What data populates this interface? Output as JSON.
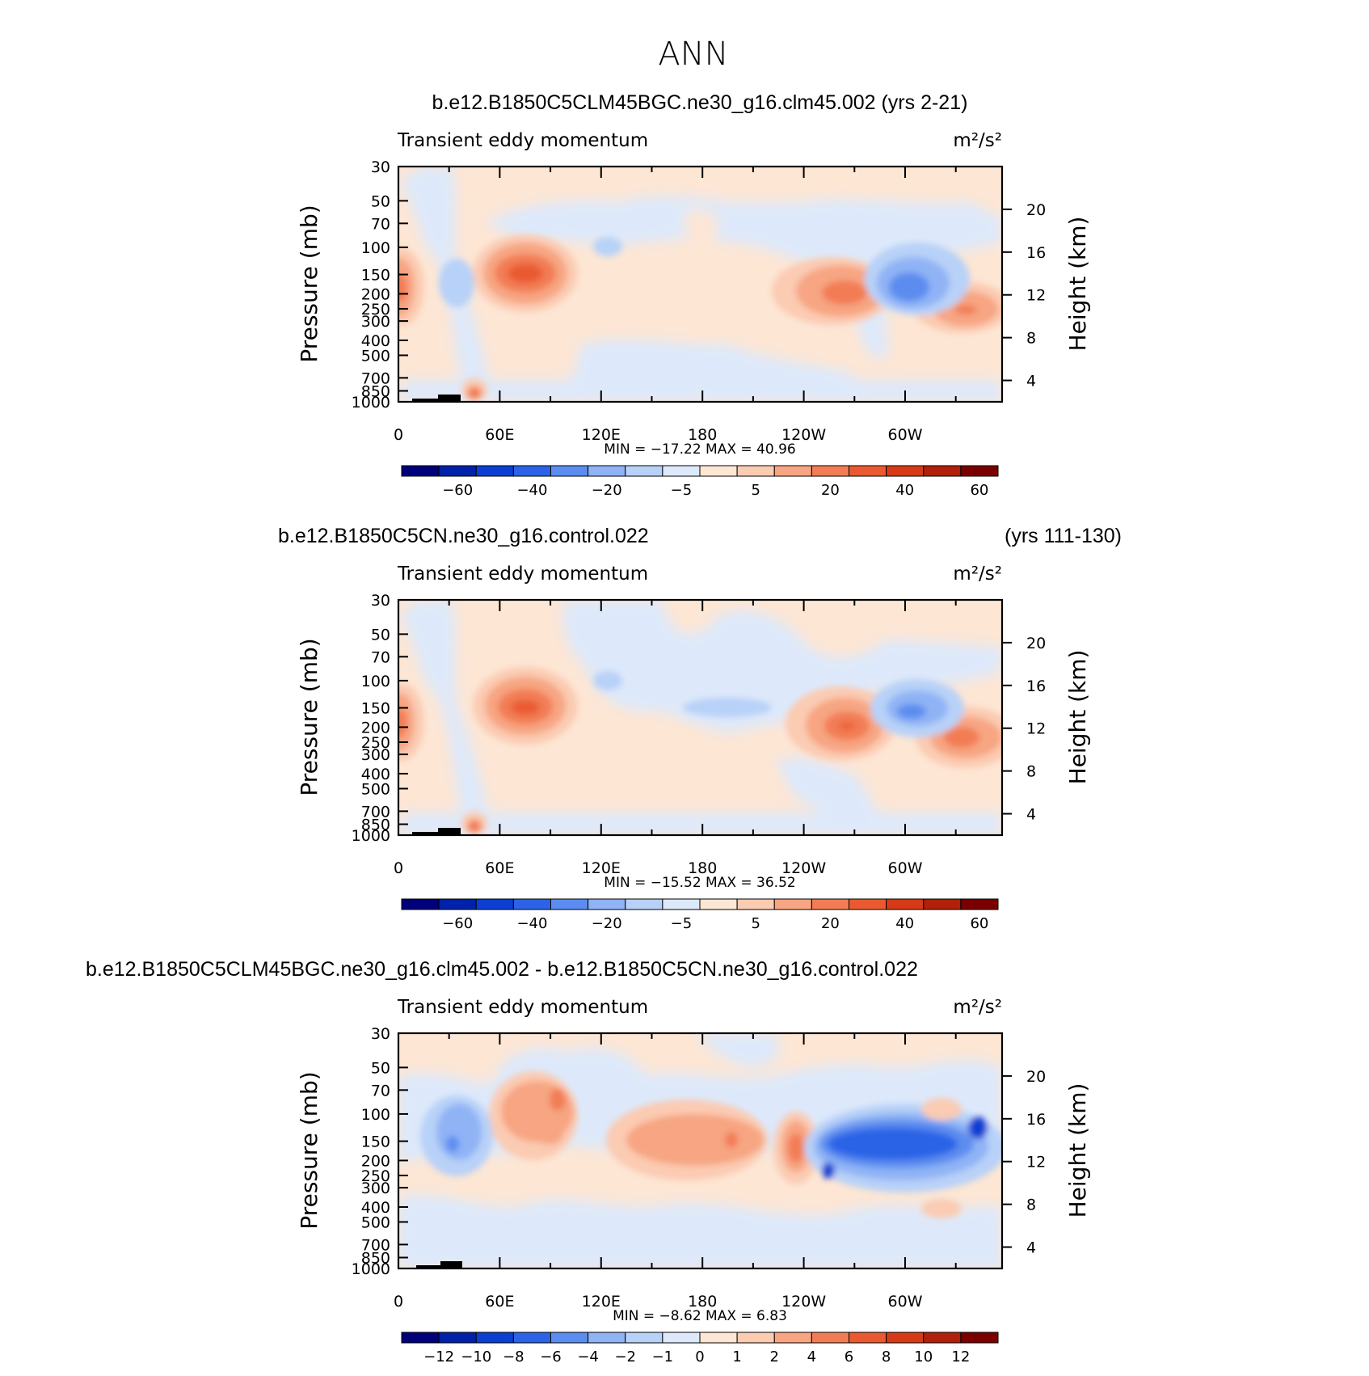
{
  "page": {
    "title": "ANN"
  },
  "panels": [
    {
      "case_title": "b.e12.B1850C5CLM45BGC.ne30_g16.clm45.002 (yrs 2-21)",
      "case_title_right": "",
      "left_label": "Transient  eddy  momentum",
      "right_label": "m²/s²",
      "left_axis_label": "Pressure  (mb)",
      "right_axis_label": "Height  (km)",
      "pressure_ticks": [
        "30",
        "50",
        "70",
        "100",
        "150",
        "200",
        "250",
        "300",
        "400",
        "500",
        "700",
        "850",
        "1000"
      ],
      "height_ticks": [
        "20",
        "16",
        "12",
        "8",
        "4"
      ],
      "lon_ticks": [
        "0",
        "60E",
        "120E",
        "180",
        "120W",
        "60W"
      ],
      "min_max": "MIN =  −17.22   MAX =    40.96",
      "colorbar_ticks": [
        "−60",
        "−40",
        "−20",
        "−5",
        "5",
        "20",
        "40",
        "60"
      ]
    },
    {
      "case_title": "b.e12.B1850C5CN.ne30_g16.control.022",
      "case_title_right": "(yrs 111-130)",
      "left_label": "Transient  eddy  momentum",
      "right_label": "m²/s²",
      "left_axis_label": "Pressure  (mb)",
      "right_axis_label": "Height  (km)",
      "pressure_ticks": [
        "30",
        "50",
        "70",
        "100",
        "150",
        "200",
        "250",
        "300",
        "400",
        "500",
        "700",
        "850",
        "1000"
      ],
      "height_ticks": [
        "20",
        "16",
        "12",
        "8",
        "4"
      ],
      "lon_ticks": [
        "0",
        "60E",
        "120E",
        "180",
        "120W",
        "60W"
      ],
      "min_max": "MIN =  −15.52   MAX =    36.52",
      "colorbar_ticks": [
        "−60",
        "−40",
        "−20",
        "−5",
        "5",
        "20",
        "40",
        "60"
      ]
    },
    {
      "case_title": "b.e12.B1850C5CLM45BGC.ne30_g16.clm45.002 - b.e12.B1850C5CN.ne30_g16.control.022",
      "case_title_right": "",
      "left_label": "Transient  eddy  momentum",
      "right_label": "m²/s²",
      "left_axis_label": "Pressure  (mb)",
      "right_axis_label": "Height  (km)",
      "pressure_ticks": [
        "30",
        "50",
        "70",
        "100",
        "150",
        "200",
        "250",
        "300",
        "400",
        "500",
        "700",
        "850",
        "1000"
      ],
      "height_ticks": [
        "20",
        "16",
        "12",
        "8",
        "4"
      ],
      "lon_ticks": [
        "0",
        "60E",
        "120E",
        "180",
        "120W",
        "60W"
      ],
      "min_max": "MIN =    −8.62   MAX =     6.83",
      "colorbar_ticks": [
        "−12",
        "−10",
        "−8",
        "−6",
        "−4",
        "−2",
        "−1",
        "0",
        "1",
        "2",
        "4",
        "6",
        "8",
        "10",
        "12"
      ]
    }
  ],
  "colors": {
    "scale": [
      "#00007a",
      "#0022a8",
      "#0a3fd2",
      "#2c63e6",
      "#5b8cf0",
      "#8fb3f5",
      "#b8d1f8",
      "#dde9fb",
      "#fde6d4",
      "#fbcbb2",
      "#f7a582",
      "#f27d55",
      "#ea5a30",
      "#d63a16",
      "#b0200a",
      "#7a0000"
    ]
  },
  "chart_data": [
    {
      "type": "heatmap",
      "title": "b.e12.B1850C5CLM45BGC.ne30_g16.clm45.002 (yrs 2-21)",
      "xlabel": "",
      "ylabel": "Pressure (mb)",
      "y2label": "Height (km)",
      "x_ticks": [
        "0",
        "60E",
        "120E",
        "180",
        "120W",
        "60W"
      ],
      "y_ticks_mb": [
        30,
        50,
        70,
        100,
        150,
        200,
        250,
        300,
        400,
        500,
        700,
        850,
        1000
      ],
      "y2_ticks_km": [
        20,
        16,
        12,
        8,
        4
      ],
      "levels": [
        -60,
        -40,
        -20,
        -5,
        5,
        20,
        40,
        60
      ],
      "min": -17.22,
      "max": 40.96,
      "features": [
        {
          "lon": 2,
          "p_mb": 200,
          "value": 25
        },
        {
          "lon": 38,
          "p_mb": 180,
          "value": -8
        },
        {
          "lon": 77,
          "p_mb": 150,
          "value": 38
        },
        {
          "lon": 120,
          "p_mb": 100,
          "value": -7
        },
        {
          "lon": 260,
          "p_mb": 200,
          "value": 28
        },
        {
          "lon": 290,
          "p_mb": 180,
          "value": -15
        },
        {
          "lon": 337,
          "p_mb": 250,
          "value": 22
        },
        {
          "lon": 47,
          "p_mb": 900,
          "value": 20
        }
      ]
    },
    {
      "type": "heatmap",
      "title": "b.e12.B1850C5CN.ne30_g16.control.022 (yrs 111-130)",
      "xlabel": "",
      "ylabel": "Pressure (mb)",
      "y2label": "Height (km)",
      "x_ticks": [
        "0",
        "60E",
        "120E",
        "180",
        "120W",
        "60W"
      ],
      "y_ticks_mb": [
        30,
        50,
        70,
        100,
        150,
        200,
        250,
        300,
        400,
        500,
        700,
        850,
        1000
      ],
      "y2_ticks_km": [
        20,
        16,
        12,
        8,
        4
      ],
      "levels": [
        -60,
        -40,
        -20,
        -5,
        5,
        20,
        40,
        60
      ],
      "min": -15.52,
      "max": 36.52,
      "features": [
        {
          "lon": 2,
          "p_mb": 200,
          "value": 25
        },
        {
          "lon": 77,
          "p_mb": 150,
          "value": 34
        },
        {
          "lon": 125,
          "p_mb": 100,
          "value": -6
        },
        {
          "lon": 195,
          "p_mb": 150,
          "value": -7
        },
        {
          "lon": 268,
          "p_mb": 200,
          "value": 32
        },
        {
          "lon": 300,
          "p_mb": 150,
          "value": -14
        },
        {
          "lon": 340,
          "p_mb": 230,
          "value": 25
        },
        {
          "lon": 47,
          "p_mb": 900,
          "value": 20
        }
      ]
    },
    {
      "type": "heatmap",
      "title": "b.e12.B1850C5CLM45BGC.ne30_g16.clm45.002 - b.e12.B1850C5CN.ne30_g16.control.022",
      "xlabel": "",
      "ylabel": "Pressure (mb)",
      "y2label": "Height (km)",
      "x_ticks": [
        "0",
        "60E",
        "120E",
        "180",
        "120W",
        "60W"
      ],
      "y_ticks_mb": [
        30,
        50,
        70,
        100,
        150,
        200,
        250,
        300,
        400,
        500,
        700,
        850,
        1000
      ],
      "y2_ticks_km": [
        20,
        16,
        12,
        8,
        4
      ],
      "levels": [
        -12,
        -10,
        -8,
        -6,
        -4,
        -2,
        -1,
        0,
        1,
        2,
        4,
        6,
        8,
        10,
        12
      ],
      "min": -8.62,
      "max": 6.83,
      "features": [
        {
          "lon": 32,
          "p_mb": 180,
          "value": -5
        },
        {
          "lon": 85,
          "p_mb": 150,
          "value": 6
        },
        {
          "lon": 160,
          "p_mb": 180,
          "value": 3
        },
        {
          "lon": 195,
          "p_mb": 160,
          "value": 4
        },
        {
          "lon": 230,
          "p_mb": 180,
          "value": 4
        },
        {
          "lon": 265,
          "p_mb": 220,
          "value": -7
        },
        {
          "lon": 315,
          "p_mb": 200,
          "value": -6.5
        },
        {
          "lon": 340,
          "p_mb": 160,
          "value": -6
        },
        {
          "lon": 320,
          "p_mb": 100,
          "value": 2
        }
      ]
    }
  ]
}
